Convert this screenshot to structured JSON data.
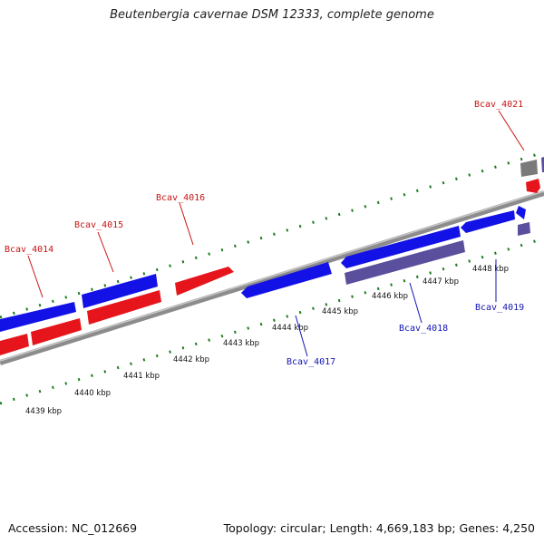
{
  "title": "Beutenbergia cavernae DSM 12333, complete genome",
  "footer": {
    "accession": "Accession: NC_012669",
    "topology": "Topology: circular; Length: 4,669,183 bp; Genes: 4,250"
  },
  "colors": {
    "forward": "#e6141b",
    "reverse": "#1212e6",
    "rna": "#5a4f9c",
    "other": "#7a7a7a",
    "tick": "#1e7d1e",
    "backbone": "#8c8c8c",
    "label_forward": "#c81414",
    "label_reverse": "#1414b4"
  },
  "scale": {
    "kbp_labels": [
      "4439 kbp",
      "4440 kbp",
      "4441 kbp",
      "4442 kbp",
      "4443 kbp",
      "4444 kbp",
      "4445 kbp",
      "4446 kbp",
      "4447 kbp",
      "4448 kbp"
    ],
    "kbp_values": [
      4439,
      4440,
      4441,
      4442,
      4443,
      4444,
      4445,
      4446,
      4447,
      4448
    ]
  },
  "gene_labels": [
    {
      "name": "Bcav_4014",
      "strand": "forward"
    },
    {
      "name": "Bcav_4015",
      "strand": "forward"
    },
    {
      "name": "Bcav_4016",
      "strand": "forward"
    },
    {
      "name": "Bcav_4021",
      "strand": "forward"
    },
    {
      "name": "Bcav_4017",
      "strand": "reverse"
    },
    {
      "name": "Bcav_4018",
      "strand": "reverse"
    },
    {
      "name": "Bcav_4019",
      "strand": "reverse"
    }
  ]
}
